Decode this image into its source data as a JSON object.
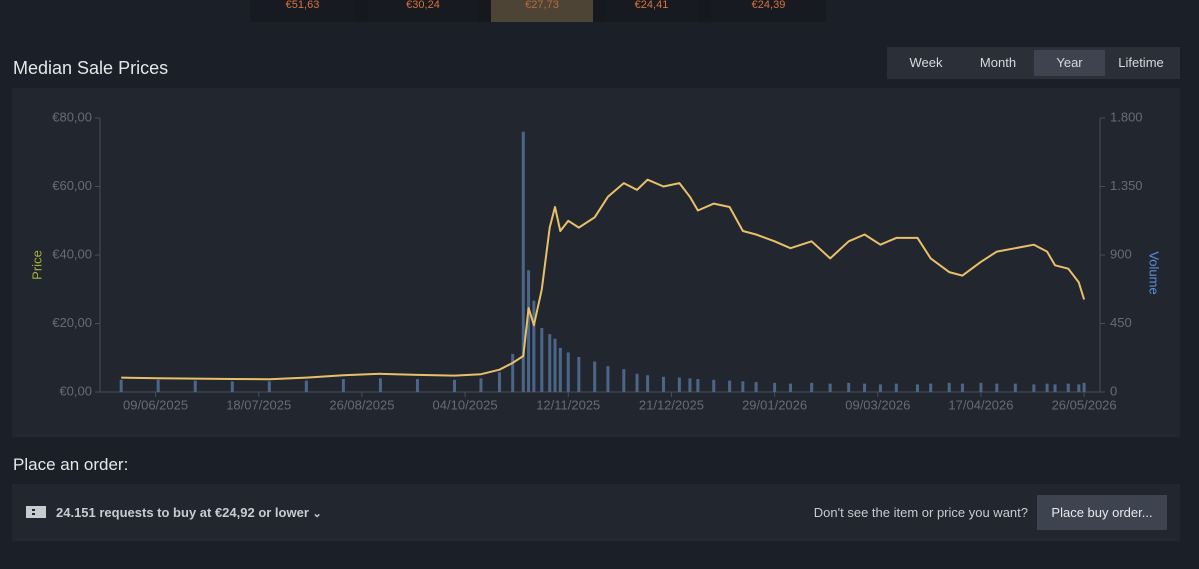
{
  "tabs": {
    "items": [
      "€51,63",
      "€30,24",
      "€27,73",
      "€24,41",
      "€24,39"
    ],
    "active": 2
  },
  "ranges": {
    "items": [
      "Week",
      "Month",
      "Year",
      "Lifetime"
    ],
    "active": 2
  },
  "chart_data": {
    "type": "line",
    "title": "Median Sale Prices",
    "y_label": "Price",
    "y2_label": "Volume",
    "x": [
      "27/05/2025",
      "10/06/2025",
      "24/06/2025",
      "08/07/2025",
      "22/07/2025",
      "05/08/2025",
      "19/08/2025",
      "02/09/2025",
      "16/09/2025",
      "30/09/2025",
      "10/10/2025",
      "17/10/2025",
      "22/10/2025",
      "26/10/2025",
      "28/10/2025",
      "30/10/2025",
      "02/11/2025",
      "05/11/2025",
      "07/11/2025",
      "09/11/2025",
      "12/11/2025",
      "16/11/2025",
      "22/11/2025",
      "27/11/2025",
      "03/12/2025",
      "08/12/2025",
      "12/12/2025",
      "18/12/2025",
      "24/12/2025",
      "28/12/2025",
      "31/12/2025",
      "06/01/2026",
      "12/01/2026",
      "17/01/2026",
      "22/01/2026",
      "29/01/2026",
      "04/02/2026",
      "12/02/2026",
      "19/02/2026",
      "26/02/2026",
      "04/03/2026",
      "10/03/2026",
      "16/03/2026",
      "24/03/2026",
      "29/03/2026",
      "05/04/2026",
      "10/04/2026",
      "17/04/2026",
      "23/04/2026",
      "30/04/2026",
      "07/05/2026",
      "12/05/2026",
      "15/05/2026",
      "20/05/2026",
      "24/05/2026",
      "26/05/2026"
    ],
    "series": [
      {
        "name": "Price",
        "color": "#e8c06a",
        "values": [
          4.2,
          4.0,
          3.9,
          3.8,
          3.7,
          4.2,
          4.9,
          5.3,
          5.0,
          4.8,
          5.2,
          6.5,
          8.5,
          10.5,
          24.5,
          19.5,
          30,
          48,
          54,
          47,
          50,
          48,
          51,
          57,
          61,
          59,
          62,
          60,
          61,
          57,
          53,
          55,
          54,
          47,
          46,
          44,
          42,
          44,
          39,
          44,
          46,
          43,
          45,
          45,
          39,
          35,
          34,
          38,
          41,
          42,
          43,
          41,
          37,
          36,
          32,
          27
        ]
      },
      {
        "name": "Volume",
        "color": "#4b6689",
        "axis": "y2",
        "values": [
          80,
          80,
          75,
          70,
          70,
          75,
          85,
          90,
          85,
          80,
          90,
          130,
          250,
          1710,
          800,
          600,
          420,
          380,
          350,
          290,
          260,
          230,
          200,
          170,
          150,
          120,
          110,
          100,
          95,
          90,
          85,
          80,
          75,
          70,
          65,
          60,
          55,
          60,
          55,
          60,
          55,
          50,
          55,
          50,
          55,
          60,
          55,
          60,
          55,
          55,
          50,
          55,
          50,
          55,
          50,
          60
        ]
      }
    ],
    "xlim": [
      "19/05/2025",
      "01/06/2026"
    ],
    "xticks": [
      "09/06/2025",
      "18/07/2025",
      "26/08/2025",
      "04/10/2025",
      "12/11/2025",
      "21/12/2025",
      "29/01/2026",
      "09/03/2026",
      "17/04/2026",
      "26/05/2026"
    ],
    "ylim": [
      0,
      80
    ],
    "yticks": [
      {
        "value": 0,
        "label": "€0,00"
      },
      {
        "value": 20,
        "label": "€20,00"
      },
      {
        "value": 40,
        "label": "€40,00"
      },
      {
        "value": 60,
        "label": "€60,00"
      },
      {
        "value": 80,
        "label": "€80,00"
      }
    ],
    "y2lim": [
      0,
      1800
    ],
    "y2ticks": [
      0,
      450,
      900,
      {
        "value": 1350,
        "label": "1.350"
      },
      {
        "value": 1800,
        "label": "1.800"
      }
    ],
    "grid": false
  },
  "order": {
    "title": "Place an order:",
    "summary": "24.151 requests to buy at €24,92 or lower",
    "prompt": "Don't see the item or price you want?",
    "button": "Place buy order..."
  }
}
